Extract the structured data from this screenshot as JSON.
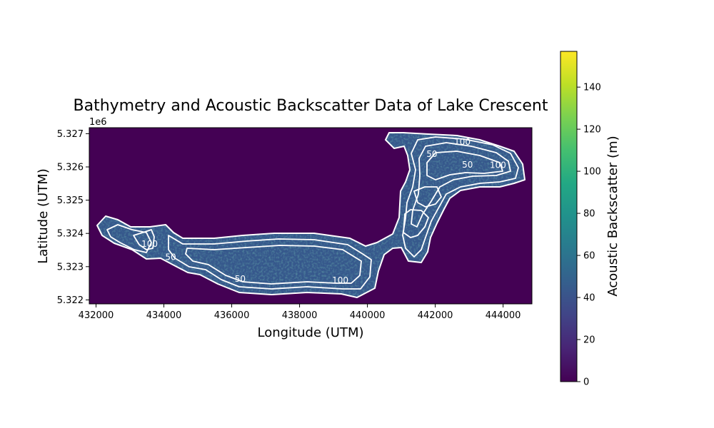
{
  "chart_data": {
    "type": "heatmap",
    "title": "Bathymetry and Acoustic Backscatter Data of Lake Crescent",
    "xlabel": "Longitude (UTM)",
    "ylabel": "Latitude (UTM)",
    "y_offset_label": "1e6",
    "xlim": [
      431800,
      444850
    ],
    "ylim": [
      5.32188,
      5.32718
    ],
    "x_ticks": [
      432000,
      434000,
      436000,
      438000,
      440000,
      442000,
      444000
    ],
    "x_tick_labels": [
      "432000",
      "434000",
      "436000",
      "438000",
      "440000",
      "442000",
      "444000"
    ],
    "y_ticks": [
      5.322,
      5.323,
      5.324,
      5.325,
      5.326,
      5.327
    ],
    "y_tick_labels": [
      "5.322",
      "5.323",
      "5.324",
      "5.325",
      "5.326",
      "5.327"
    ],
    "colorbar": {
      "label": "Acoustic Backscatter (m)",
      "colormap": "viridis",
      "range": [
        0,
        157
      ],
      "ticks": [
        0,
        20,
        40,
        60,
        80,
        100,
        120,
        140
      ],
      "tick_labels": [
        "0",
        "20",
        "40",
        "60",
        "80",
        "100",
        "120",
        "140"
      ]
    },
    "background_color": "#440154",
    "contour_color": "#ffffff",
    "contour_labels": [
      {
        "text": "100",
        "x": 442800,
        "y": 5.32667
      },
      {
        "text": "50",
        "x": 441900,
        "y": 5.3263
      },
      {
        "text": "50",
        "x": 442950,
        "y": 5.32598
      },
      {
        "text": "100",
        "x": 443850,
        "y": 5.32597
      },
      {
        "text": "100",
        "x": 433580,
        "y": 5.3236
      },
      {
        "text": "50",
        "x": 434200,
        "y": 5.3232
      },
      {
        "text": "50",
        "x": 436250,
        "y": 5.32255
      },
      {
        "text": "100",
        "x": 439200,
        "y": 5.3225
      }
    ]
  }
}
